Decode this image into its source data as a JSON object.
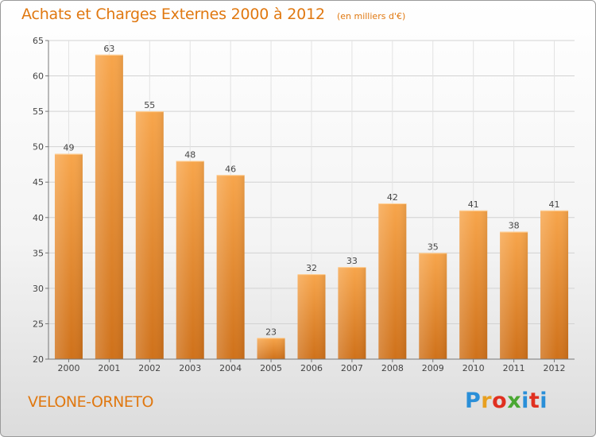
{
  "header": {
    "title": "Achats et Charges Externes 2000 à 2012",
    "unit": "(en milliers d'€)"
  },
  "footer": {
    "commune": "VELONE-ORNETO",
    "logo_text": "Proxiti"
  },
  "colors": {
    "bar_light": "#f7a54b",
    "bar_dark": "#d0731c",
    "title": "#e07810",
    "grid": "#d4d4d4"
  },
  "chart_data": {
    "type": "bar",
    "title": "Achats et Charges Externes 2000 à 2012",
    "subtitle": "(en milliers d'€)",
    "categories": [
      "2000",
      "2001",
      "2002",
      "2003",
      "2004",
      "2005",
      "2006",
      "2007",
      "2008",
      "2009",
      "2010",
      "2011",
      "2012"
    ],
    "values": [
      49,
      63,
      55,
      48,
      46,
      23,
      32,
      33,
      42,
      35,
      41,
      38,
      41
    ],
    "ylim": [
      20,
      65
    ],
    "yticks": [
      20,
      25,
      30,
      35,
      40,
      45,
      50,
      55,
      60,
      65
    ],
    "grid": true,
    "xlabel": "",
    "ylabel": ""
  }
}
